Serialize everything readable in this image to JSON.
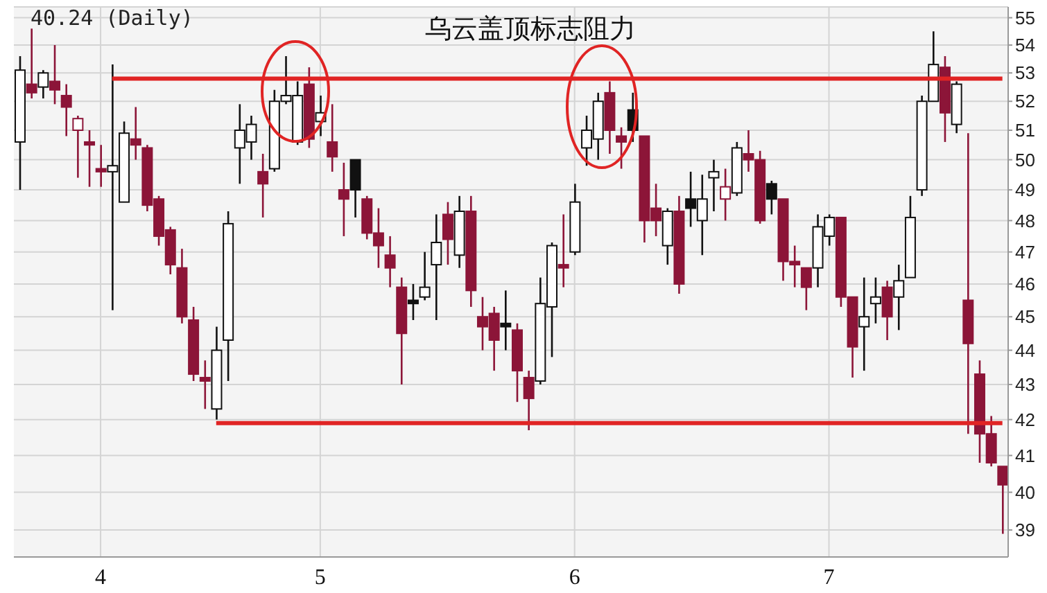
{
  "chart_data": {
    "type": "candlestick",
    "title": "乌云盖顶标志阻力",
    "subtitle": "40.24 (Daily)",
    "categories": [
      null,
      null,
      null,
      null,
      null,
      null,
      null,
      "4",
      null,
      null,
      null,
      null,
      null,
      null,
      null,
      null,
      null,
      null,
      null,
      null,
      null,
      null,
      null,
      null,
      null,
      null,
      "5",
      null,
      null,
      null,
      null,
      null,
      null,
      null,
      null,
      null,
      null,
      null,
      null,
      null,
      null,
      null,
      null,
      null,
      null,
      null,
      null,
      null,
      "6",
      null,
      null,
      null,
      null,
      null,
      null,
      null,
      null,
      null,
      null,
      null,
      null,
      null,
      null,
      null,
      null,
      null,
      null,
      null,
      null,
      null,
      "7",
      null,
      null,
      null,
      null,
      null,
      null,
      null,
      null,
      null,
      null,
      null,
      null,
      null,
      null,
      null
    ],
    "ohlc": [
      [
        50.6,
        53.6,
        49.0,
        53.1
      ],
      [
        52.6,
        54.6,
        52.1,
        52.3
      ],
      [
        52.5,
        53.1,
        52.1,
        53.0
      ],
      [
        52.7,
        54.0,
        51.9,
        52.4
      ],
      [
        52.2,
        52.6,
        50.8,
        51.8
      ],
      [
        51.0,
        51.5,
        49.4,
        51.4
      ],
      [
        50.6,
        51.0,
        49.1,
        50.5
      ],
      [
        49.7,
        50.5,
        49.1,
        49.6
      ],
      [
        49.6,
        53.3,
        45.2,
        49.8
      ],
      [
        48.6,
        51.3,
        48.6,
        50.9
      ],
      [
        50.7,
        51.8,
        50.0,
        50.5
      ],
      [
        50.4,
        50.5,
        48.3,
        48.5
      ],
      [
        48.7,
        48.8,
        47.2,
        47.5
      ],
      [
        47.7,
        47.8,
        46.3,
        46.6
      ],
      [
        46.5,
        47.1,
        44.8,
        45.0
      ],
      [
        44.9,
        45.3,
        43.1,
        43.3
      ],
      [
        43.2,
        43.7,
        42.3,
        43.1
      ],
      [
        42.3,
        44.7,
        42.0,
        44.0
      ],
      [
        44.3,
        48.3,
        43.1,
        47.9
      ],
      [
        50.4,
        51.9,
        49.2,
        51.0
      ],
      [
        50.6,
        51.5,
        50.0,
        51.2
      ],
      [
        49.6,
        50.2,
        48.1,
        49.2
      ],
      [
        49.7,
        52.4,
        49.6,
        52.0
      ],
      [
        52.0,
        53.6,
        51.9,
        52.2
      ],
      [
        50.6,
        52.7,
        50.5,
        52.2
      ],
      [
        52.6,
        53.2,
        50.4,
        50.7
      ],
      [
        51.3,
        52.2,
        50.8,
        51.6
      ],
      [
        50.6,
        51.9,
        49.6,
        50.1
      ],
      [
        49.0,
        49.9,
        47.5,
        48.7
      ],
      [
        50.0,
        50.0,
        48.1,
        49.0
      ],
      [
        48.7,
        48.8,
        47.4,
        47.6
      ],
      [
        47.6,
        48.4,
        46.5,
        47.2
      ],
      [
        46.9,
        47.5,
        45.9,
        46.5
      ],
      [
        45.9,
        46.2,
        43.0,
        44.5
      ],
      [
        45.5,
        46.0,
        44.9,
        45.4
      ],
      [
        45.6,
        47.0,
        45.5,
        45.9
      ],
      [
        46.6,
        48.2,
        44.9,
        47.3
      ],
      [
        48.2,
        48.6,
        46.6,
        47.4
      ],
      [
        46.9,
        48.8,
        46.5,
        48.3
      ],
      [
        48.3,
        48.8,
        45.3,
        45.8
      ],
      [
        45.0,
        45.6,
        44.0,
        44.7
      ],
      [
        45.1,
        45.3,
        43.4,
        44.3
      ],
      [
        44.8,
        45.8,
        44.0,
        44.7
      ],
      [
        44.6,
        44.8,
        42.5,
        43.4
      ],
      [
        43.2,
        43.4,
        41.7,
        42.6
      ],
      [
        43.1,
        46.2,
        43.0,
        45.4
      ],
      [
        45.3,
        47.3,
        43.8,
        47.2
      ],
      [
        46.6,
        48.2,
        45.9,
        46.5
      ],
      [
        47.0,
        49.2,
        46.9,
        48.6
      ],
      [
        50.4,
        51.5,
        49.8,
        51.0
      ],
      [
        50.7,
        52.3,
        50.0,
        52.0
      ],
      [
        52.3,
        52.7,
        50.2,
        51.0
      ],
      [
        50.8,
        51.1,
        49.7,
        50.6
      ],
      [
        51.7,
        52.3,
        50.6,
        51.0
      ],
      [
        50.8,
        50.8,
        47.3,
        48.0
      ],
      [
        48.4,
        49.2,
        47.5,
        48.0
      ],
      [
        47.2,
        48.4,
        46.6,
        48.3
      ],
      [
        48.3,
        48.8,
        45.7,
        46.0
      ],
      [
        48.7,
        49.6,
        47.8,
        48.4
      ],
      [
        48.0,
        49.5,
        46.9,
        48.7
      ],
      [
        49.4,
        50.0,
        48.3,
        49.6
      ],
      [
        48.7,
        49.7,
        48.0,
        49.1
      ],
      [
        48.9,
        50.6,
        48.8,
        50.4
      ],
      [
        50.2,
        51.0,
        49.6,
        50.0
      ],
      [
        50.0,
        50.3,
        47.9,
        48.0
      ],
      [
        49.2,
        49.3,
        48.2,
        48.7
      ],
      [
        48.7,
        48.7,
        46.1,
        46.7
      ],
      [
        46.7,
        47.2,
        45.9,
        46.6
      ],
      [
        46.5,
        46.5,
        45.2,
        45.9
      ],
      [
        46.5,
        48.2,
        45.9,
        47.8
      ],
      [
        47.5,
        48.2,
        47.2,
        48.1
      ],
      [
        48.1,
        48.1,
        45.3,
        45.6
      ],
      [
        45.6,
        45.6,
        43.2,
        44.1
      ],
      [
        44.7,
        46.2,
        43.4,
        45.0
      ],
      [
        45.4,
        46.2,
        44.8,
        45.6
      ],
      [
        45.9,
        46.1,
        44.3,
        45.0
      ],
      [
        45.6,
        46.6,
        44.6,
        46.1
      ],
      [
        46.2,
        48.8,
        46.2,
        48.1
      ],
      [
        49.0,
        52.2,
        48.8,
        52.0
      ],
      [
        52.0,
        54.5,
        52.0,
        53.3
      ],
      [
        53.2,
        53.6,
        50.6,
        51.6
      ],
      [
        51.2,
        52.7,
        50.9,
        52.6
      ],
      [
        45.5,
        50.9,
        41.6,
        44.2
      ],
      [
        43.3,
        43.7,
        40.8,
        41.6
      ],
      [
        41.6,
        42.1,
        40.7,
        40.8
      ],
      [
        40.7,
        40.7,
        38.9,
        40.2
      ]
    ],
    "colors": [
      "#111111",
      "#8c1538",
      "#111111",
      "#8c1538",
      "#8c1538",
      "#8c1538",
      "#8c1538",
      "#8c1538",
      "#111111",
      "#111111",
      "#8c1538",
      "#8c1538",
      "#8c1538",
      "#8c1538",
      "#8c1538",
      "#8c1538",
      "#8c1538",
      "#111111",
      "#111111",
      "#111111",
      "#111111",
      "#8c1538",
      "#111111",
      "#111111",
      "#111111",
      "#8c1538",
      "#111111",
      "#8c1538",
      "#8c1538",
      "#111111",
      "#8c1538",
      "#8c1538",
      "#8c1538",
      "#8c1538",
      "#111111",
      "#111111",
      "#111111",
      "#8c1538",
      "#111111",
      "#8c1538",
      "#8c1538",
      "#8c1538",
      "#111111",
      "#8c1538",
      "#8c1538",
      "#111111",
      "#111111",
      "#8c1538",
      "#111111",
      "#111111",
      "#111111",
      "#8c1538",
      "#8c1538",
      "#111111",
      "#8c1538",
      "#8c1538",
      "#111111",
      "#8c1538",
      "#111111",
      "#111111",
      "#111111",
      "#8c1538",
      "#111111",
      "#8c1538",
      "#8c1538",
      "#111111",
      "#8c1538",
      "#8c1538",
      "#8c1538",
      "#111111",
      "#111111",
      "#8c1538",
      "#8c1538",
      "#111111",
      "#111111",
      "#8c1538",
      "#111111",
      "#111111",
      "#111111",
      "#111111",
      "#8c1538",
      "#111111",
      "#8c1538",
      "#8c1538",
      "#8c1538",
      "#8c1538"
    ],
    "series": [
      {
        "type": "line",
        "color": "#e02424",
        "values": [
          null,
          null,
          null,
          null,
          null,
          null,
          null,
          null,
          52.8,
          52.8,
          52.8,
          52.8,
          52.8,
          52.8,
          52.8,
          52.8,
          52.8,
          52.8,
          52.8,
          52.8,
          52.8,
          52.8,
          52.8,
          52.8,
          52.8,
          52.8,
          52.8,
          52.8,
          52.8,
          52.8,
          52.8,
          52.8,
          52.8,
          52.8,
          52.8,
          52.8,
          52.8,
          52.8,
          52.8,
          52.8,
          52.8,
          52.8,
          52.8,
          52.8,
          52.8,
          52.8,
          52.8,
          52.8,
          52.8,
          52.8,
          52.8,
          52.8,
          52.8,
          52.8,
          52.8,
          52.8,
          52.8,
          52.8,
          52.8,
          52.8,
          52.8,
          52.8,
          52.8,
          52.8,
          52.8,
          52.8,
          52.8,
          52.8,
          52.8,
          52.8,
          52.8,
          52.8,
          52.8,
          52.8,
          52.8,
          52.8,
          52.8,
          52.8,
          52.8,
          52.8,
          52.8,
          52.8,
          52.8,
          52.8,
          52.8,
          52.8
        ]
      },
      {
        "type": "line",
        "color": "#e02424",
        "values": [
          null,
          null,
          null,
          null,
          null,
          null,
          null,
          null,
          null,
          null,
          null,
          null,
          null,
          null,
          null,
          null,
          null,
          41.9,
          41.9,
          41.9,
          41.9,
          41.9,
          41.9,
          41.9,
          41.9,
          41.9,
          41.9,
          41.9,
          41.9,
          41.9,
          41.9,
          41.9,
          41.9,
          41.9,
          41.9,
          41.9,
          41.9,
          41.9,
          41.9,
          41.9,
          41.9,
          41.9,
          41.9,
          41.9,
          41.9,
          41.9,
          41.9,
          41.9,
          41.9,
          41.9,
          41.9,
          41.9,
          41.9,
          41.9,
          41.9,
          41.9,
          41.9,
          41.9,
          41.9,
          41.9,
          41.9,
          41.9,
          41.9,
          41.9,
          41.9,
          41.9,
          41.9,
          41.9,
          41.9,
          41.9,
          41.9,
          41.9,
          41.9,
          41.9,
          41.9,
          41.9,
          41.9,
          41.9,
          41.9,
          41.9,
          41.9,
          41.9,
          41.9,
          41.9,
          41.9,
          41.9
        ]
      }
    ],
    "ylim": [
      38.3,
      55.4
    ],
    "yticks": [
      39,
      40,
      41,
      42,
      43,
      44,
      45,
      46,
      47,
      48,
      49,
      50,
      51,
      52,
      53,
      54,
      55
    ],
    "log": true,
    "grid": true
  }
}
